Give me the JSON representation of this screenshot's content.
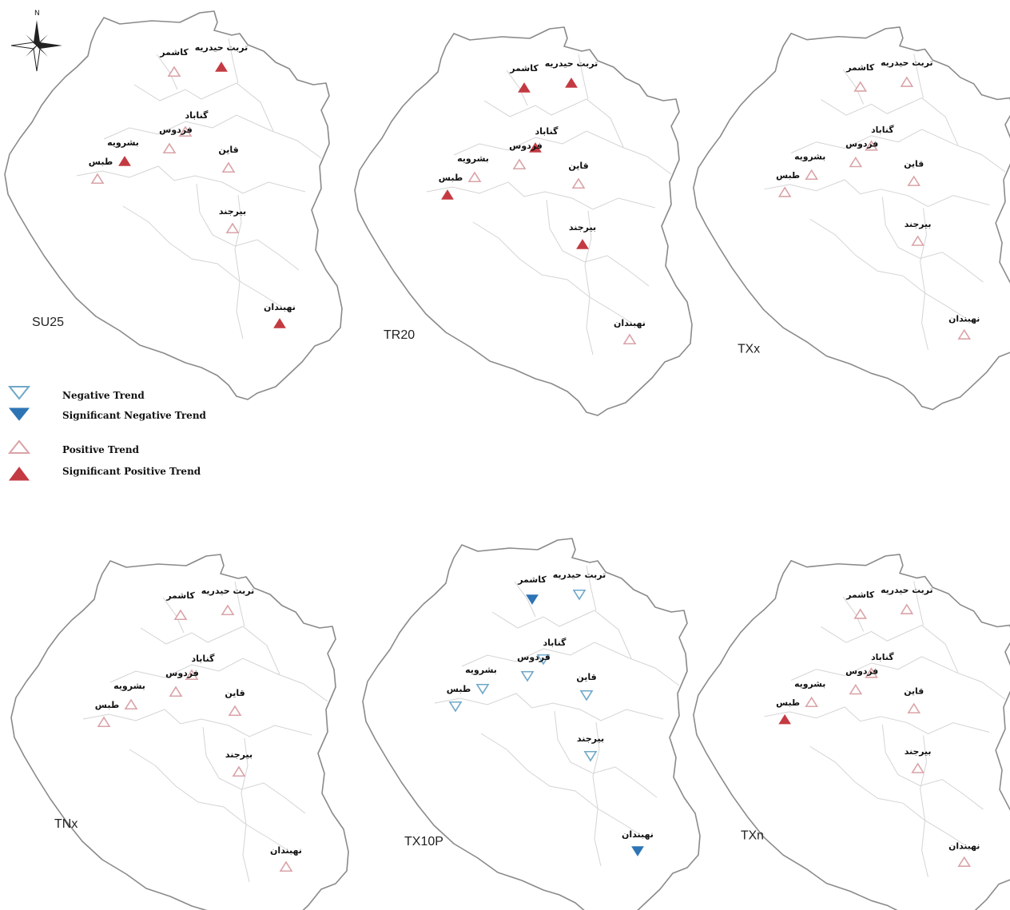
{
  "compass": {
    "north_label": "N",
    "icon": "north-arrow-compass-icon"
  },
  "colors": {
    "negative": "#6fa8c8",
    "significant_negative": "#2d74b5",
    "positive": "#d9a3a8",
    "significant_positive": "#c43a42",
    "outline": "#8a8a8a",
    "inner_borders": "#d4d4d4"
  },
  "legend": {
    "items": [
      {
        "type": "negative",
        "label": "Negative Trend"
      },
      {
        "type": "significant_negative",
        "label": "Significant Negative Trend"
      },
      {
        "type": "positive",
        "label": "Positive Trend"
      },
      {
        "type": "significant_positive",
        "label": "Significant Positive Trend"
      }
    ]
  },
  "stations": [
    "تربت حیدریه",
    "کاشمر",
    "گناباد",
    "فردوس",
    "بشرویه",
    "طبس",
    "قاین",
    "بیرجند",
    "نهبندان"
  ],
  "panels": [
    {
      "label": "SU25",
      "trends": [
        "significant_positive",
        "positive",
        "positive",
        "positive",
        "significant_positive",
        "positive",
        "positive",
        "positive",
        "significant_positive"
      ]
    },
    {
      "label": "TR20",
      "trends": [
        "significant_positive",
        "significant_positive",
        "significant_positive",
        "positive",
        "positive",
        "significant_positive",
        "positive",
        "significant_positive",
        "positive"
      ]
    },
    {
      "label": "TXx",
      "trends": [
        "positive",
        "positive",
        "positive",
        "positive",
        "positive",
        "positive",
        "positive",
        "positive",
        "positive"
      ]
    },
    {
      "label": "TNx",
      "trends": [
        "positive",
        "positive",
        "positive",
        "positive",
        "positive",
        "positive",
        "positive",
        "positive",
        "positive"
      ]
    },
    {
      "label": "TX10P",
      "trends": [
        "negative",
        "significant_negative",
        "negative",
        "negative",
        "negative",
        "negative",
        "negative",
        "negative",
        "significant_negative"
      ]
    },
    {
      "label": "TXn",
      "trends": [
        "positive",
        "positive",
        "positive",
        "positive",
        "positive",
        "significant_positive",
        "positive",
        "positive",
        "positive"
      ]
    }
  ]
}
